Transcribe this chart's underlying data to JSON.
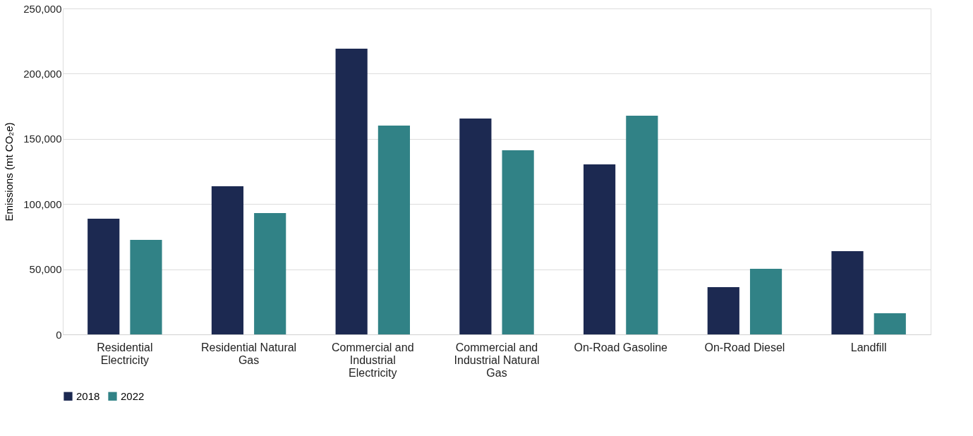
{
  "chart_data": {
    "type": "bar",
    "ylabel": "Emissions (mt CO₂e)",
    "categories": [
      "Residential Electricity",
      "Residential Natural Gas",
      "Commercial and Industrial Electricity",
      "Commercial and Industrial Natural Gas",
      "On-Road Gasoline",
      "On-Road Diesel",
      "Landfill"
    ],
    "series": [
      {
        "name": "2018",
        "color": "#1c2951",
        "values": [
          88700,
          113600,
          219200,
          165600,
          130400,
          36300,
          63900
        ]
      },
      {
        "name": "2022",
        "color": "#318286",
        "values": [
          72500,
          93100,
          160200,
          141200,
          167700,
          50300,
          16200
        ]
      }
    ],
    "ylim": [
      0,
      250000
    ],
    "yticks": [
      {
        "value": 0,
        "label": "0"
      },
      {
        "value": 50000,
        "label": "50,000"
      },
      {
        "value": 100000,
        "label": "100,000"
      },
      {
        "value": 150000,
        "label": "150,000"
      },
      {
        "value": 200000,
        "label": "200,000"
      },
      {
        "value": 250000,
        "label": "250,000"
      }
    ],
    "grid": "y",
    "legend": "bottom"
  }
}
